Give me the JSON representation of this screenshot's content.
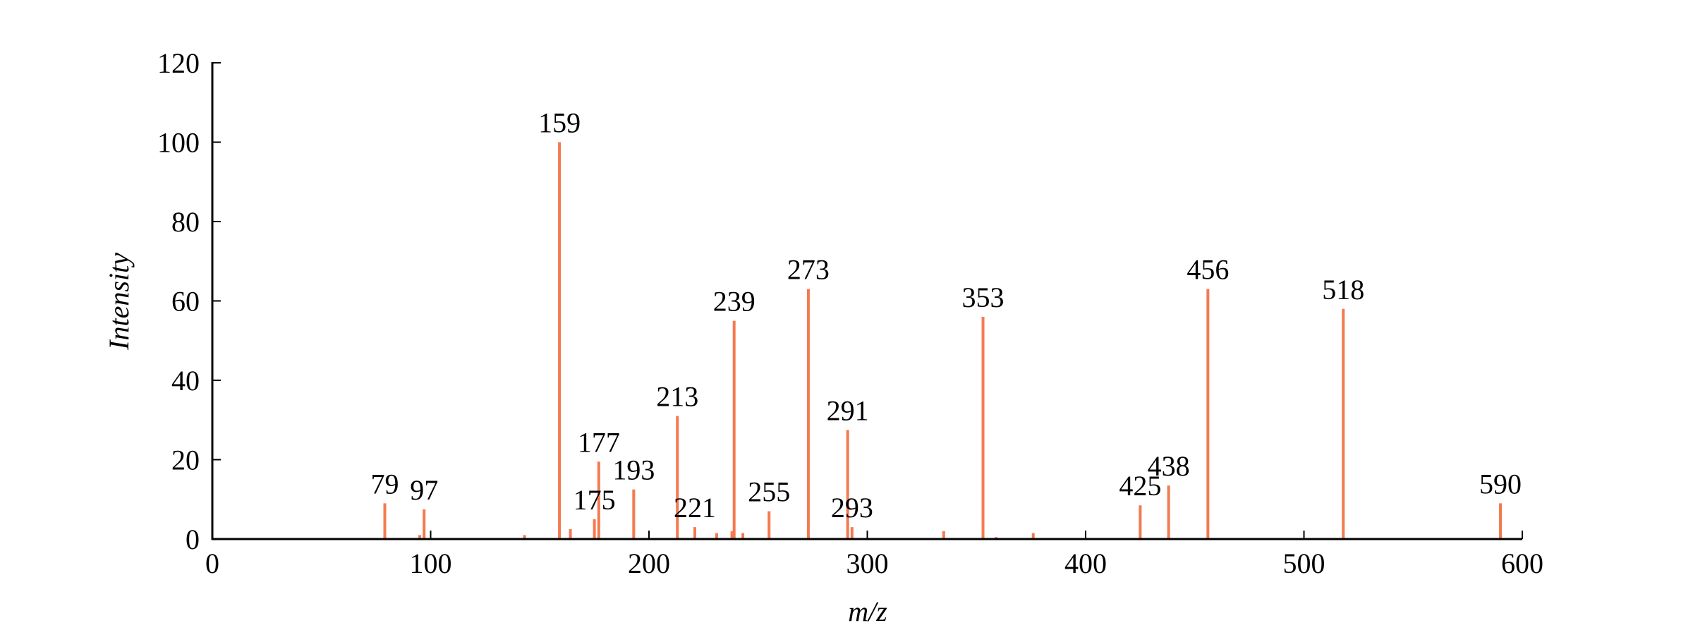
{
  "chart_data": {
    "type": "stem",
    "x_label": "m/z",
    "y_label": "Intensity",
    "x": [
      79,
      95,
      97,
      143,
      159,
      164,
      175,
      177,
      193,
      213,
      221,
      231,
      238,
      239,
      243,
      255,
      273,
      291,
      293,
      335,
      353,
      359,
      376,
      425,
      438,
      456,
      518,
      590
    ],
    "values": [
      9,
      1,
      7.5,
      1,
      100,
      2.5,
      5,
      19.5,
      12.5,
      31,
      3,
      1.5,
      2,
      55,
      1.5,
      7,
      63,
      27.5,
      3,
      2,
      56,
      0.5,
      1.5,
      8.5,
      13.5,
      63,
      58,
      9
    ],
    "annotations": [
      "79",
      "97",
      "159",
      "175",
      "177",
      "193",
      "213",
      "221",
      "239",
      "255",
      "273",
      "291",
      "293",
      "353",
      "425",
      "438",
      "456",
      "518",
      "590"
    ],
    "color": "#f47a50",
    "xlim": [
      0,
      600
    ],
    "xticks": [
      0,
      100,
      200,
      300,
      400,
      500,
      600
    ],
    "ylim": [
      0,
      120
    ],
    "yticks": [
      0,
      20,
      40,
      60,
      80,
      100,
      120
    ],
    "grid": false
  }
}
